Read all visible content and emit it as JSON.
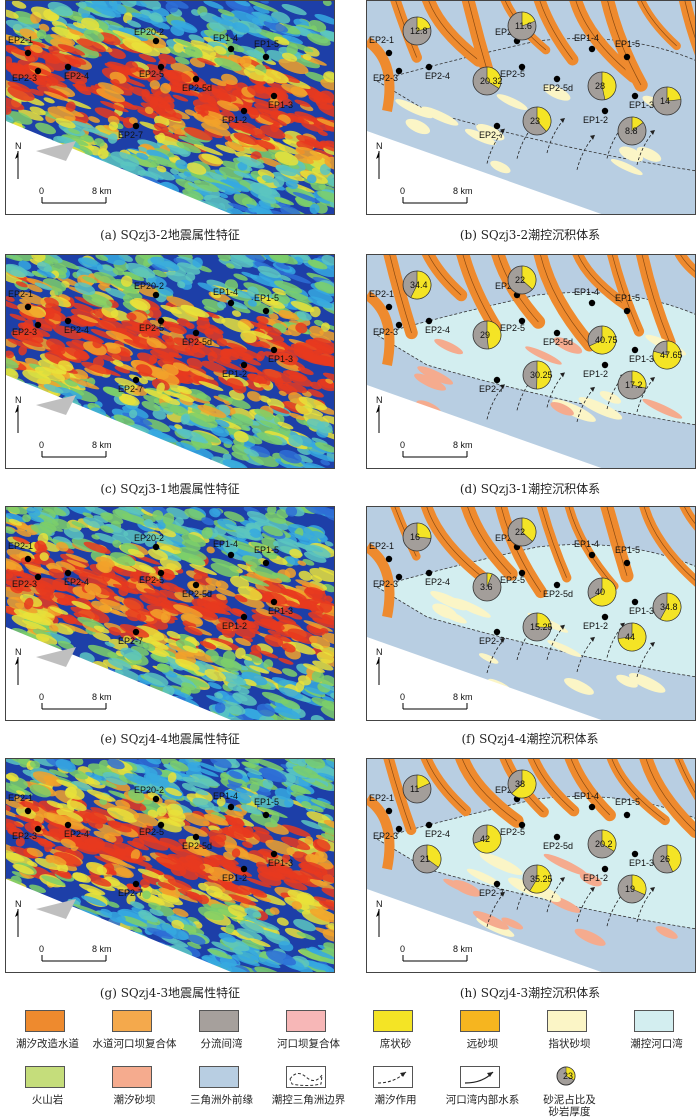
{
  "panels": [
    {
      "kind": "seismic",
      "caption": "(a) SQzj3-2地震属性特征",
      "scale": [
        "0",
        "8 km"
      ],
      "north": "N",
      "wells": [
        [
          "EP2-1",
          ""
        ],
        [
          "EP2-3",
          ""
        ],
        [
          "EP2-4",
          ""
        ],
        [
          "EP20-2",
          ""
        ],
        [
          "EP2-5",
          ""
        ],
        [
          "EP2-5d",
          ""
        ],
        [
          "EP1-4",
          ""
        ],
        [
          "EP1-5",
          ""
        ],
        [
          "EP1-3",
          ""
        ],
        [
          "EP1-2",
          ""
        ],
        [
          "EP2-7",
          ""
        ]
      ]
    },
    {
      "kind": "facies",
      "caption": "(b) SQzj3-2潮控沉积体系",
      "scale": [
        "0",
        "8 km"
      ],
      "north": "N",
      "wells": [
        "EP2-1",
        "EP2-3",
        "EP2-4",
        "EP20-2",
        "EP2-5",
        "EP2-5d",
        "EP1-4",
        "EP1-5",
        "EP1-3",
        "EP1-2",
        "EP2-7"
      ],
      "pies": [
        "12.8",
        "11.6",
        "28",
        "20.32",
        "14",
        "23",
        "8.8"
      ]
    },
    {
      "kind": "seismic",
      "caption": "(c) SQzj3-1地震属性特征",
      "scale": [
        "0",
        "8 km"
      ],
      "north": "N",
      "wells": [
        [
          "EP2-1",
          ""
        ],
        [
          "EP2-3",
          ""
        ],
        [
          "EP2-4",
          ""
        ],
        [
          "EP20-2",
          ""
        ],
        [
          "EP2-5",
          ""
        ],
        [
          "EP2-5d",
          ""
        ],
        [
          "EP1-4",
          ""
        ],
        [
          "EP1-5",
          ""
        ],
        [
          "EP1-3",
          ""
        ],
        [
          "EP1-2",
          ""
        ],
        [
          "EP2-7",
          ""
        ]
      ]
    },
    {
      "kind": "facies",
      "caption": "(d) SQzj3-1潮控沉积体系",
      "scale": [
        "0",
        "8 km"
      ],
      "north": "N",
      "wells": [
        "EP2-1",
        "EP2-3",
        "EP2-4",
        "EP20-2",
        "EP2-5",
        "EP2-5d",
        "EP1-4",
        "EP1-5",
        "EP1-3",
        "EP1-2",
        "EP2-7"
      ],
      "pies": [
        "34.4",
        "22",
        "40.75",
        "29",
        "47.65",
        "30.25",
        "17.2"
      ]
    },
    {
      "kind": "seismic",
      "caption": "(e) SQzj4-4地震属性特征",
      "scale": [
        "0",
        "8 km"
      ],
      "north": "N",
      "wells": [
        [
          "EP2-1",
          ""
        ],
        [
          "EP2-3",
          ""
        ],
        [
          "EP2-4",
          ""
        ],
        [
          "EP20-2",
          ""
        ],
        [
          "EP2-5",
          ""
        ],
        [
          "EP2-5d",
          ""
        ],
        [
          "EP1-4",
          ""
        ],
        [
          "EP1-5",
          ""
        ],
        [
          "EP1-3",
          ""
        ],
        [
          "EP1-2",
          ""
        ],
        [
          "EP2-7",
          ""
        ]
      ]
    },
    {
      "kind": "facies",
      "caption": "(f) SQzj4-4潮控沉积体系",
      "scale": [
        "0",
        "8 km"
      ],
      "north": "N",
      "wells": [
        "EP2-1",
        "EP2-3",
        "EP2-4",
        "EP20-2",
        "EP2-5",
        "EP2-5d",
        "EP1-4",
        "EP1-5",
        "EP1-3",
        "EP1-2",
        "EP2-7"
      ],
      "pies": [
        "16",
        "22",
        "40",
        "3.6",
        "34.8",
        "15.25",
        "44"
      ]
    },
    {
      "kind": "seismic",
      "caption": "(g) SQzj4-3地震属性特征",
      "scale": [
        "0",
        "8 km"
      ],
      "north": "N",
      "wells": [
        [
          "EP2-1",
          ""
        ],
        [
          "EP2-3",
          ""
        ],
        [
          "EP2-4",
          ""
        ],
        [
          "EP20-2",
          ""
        ],
        [
          "EP2-5",
          ""
        ],
        [
          "EP2-5d",
          ""
        ],
        [
          "EP1-4",
          ""
        ],
        [
          "EP1-5",
          ""
        ],
        [
          "EP1-3",
          ""
        ],
        [
          "EP1-2",
          ""
        ],
        [
          "EP2-7",
          ""
        ]
      ]
    },
    {
      "kind": "facies",
      "caption": "(h) SQzj4-3潮控沉积体系",
      "scale": [
        "0",
        "8 km"
      ],
      "north": "N",
      "wells": [
        "EP2-1",
        "EP2-3",
        "EP2-4",
        "EP20-2",
        "EP2-5",
        "EP2-5d",
        "EP1-4",
        "EP1-5",
        "EP1-3",
        "EP1-2",
        "EP2-7"
      ],
      "pies": [
        "11",
        "38",
        "20.2",
        "42",
        "26",
        "35.25",
        "19",
        "21"
      ]
    }
  ],
  "legend": [
    {
      "label": "潮汐改造水道",
      "color": "#ee8a2e"
    },
    {
      "label": "水道河口坝复合体",
      "color": "#f4a94c"
    },
    {
      "label": "分流间湾",
      "color": "#a6a09c"
    },
    {
      "label": "河口坝复合体",
      "color": "#f7b7b7"
    },
    {
      "label": "席状砂",
      "color": "#f4e425"
    },
    {
      "label": "远砂坝",
      "color": "#f6b51f"
    },
    {
      "label": "指状砂坝",
      "color": "#fbf5c6"
    },
    {
      "label": "潮控河口湾",
      "color": "#d3eef0"
    },
    {
      "label": "火山岩",
      "color": "#c5dd7b"
    },
    {
      "label": "潮汐砂坝",
      "color": "#f5ab8e"
    },
    {
      "label": "三角洲外前缘",
      "color": "#b8cee2"
    },
    {
      "label": "潮控三角洲边界",
      "color": "#ffffff"
    },
    {
      "label": "潮汐作用",
      "color": "#ffffff"
    },
    {
      "label": "河口湾内部水系",
      "color": "#ffffff"
    },
    {
      "label": "砂泥占比及\n砂岩厚度",
      "color": "#ffffff",
      "pie": "23"
    }
  ]
}
